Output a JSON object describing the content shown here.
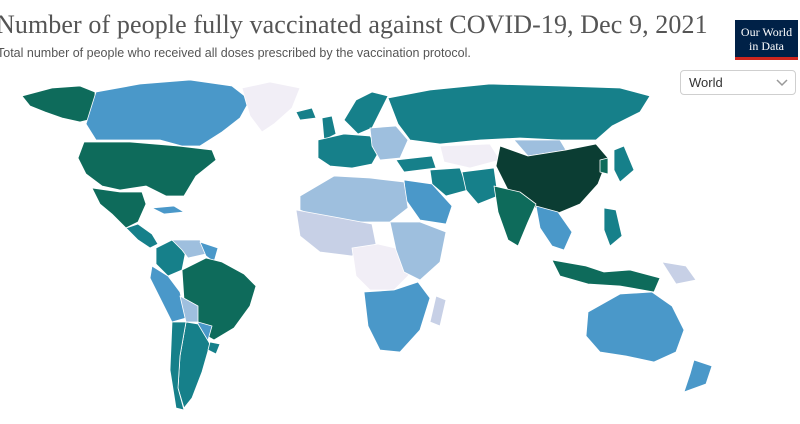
{
  "header": {
    "title": "Number of people fully vaccinated against COVID-19, Dec 9, 2021",
    "subtitle": "Total number of people who received all doses prescribed by the vaccination protocol."
  },
  "logo": {
    "line1": "Our World",
    "line2": "in Data",
    "bg": "#002147",
    "accent": "#ce261e"
  },
  "region_select": {
    "value": "World",
    "icon": "chevron-down-icon"
  },
  "map": {
    "colors": {
      "very_high": "#0b3d33",
      "high": "#0e6b5b",
      "mid_high": "#16808a",
      "mid": "#4a98c9",
      "low": "#9ebfde",
      "very_low": "#c7d0e6",
      "no_data": "#f1eef6"
    }
  }
}
